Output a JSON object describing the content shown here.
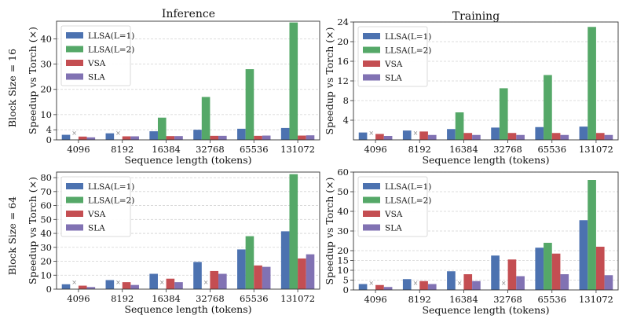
{
  "figure": {
    "col_titles": [
      "Inference",
      "Training"
    ],
    "row_labels": [
      "Block Size = 16",
      "Block Size = 64"
    ]
  },
  "colors": {
    "LLSA(L=1)": "#4c72b0",
    "LLSA(L=2)": "#55a868",
    "VSA": "#c44e52",
    "SLA": "#8172b3"
  },
  "missing_marker": "×",
  "chart_data": [
    {
      "id": "inference-bs16",
      "type": "bar",
      "title": "Inference",
      "row_label": "Block Size = 16",
      "xlabel": "Sequence length (tokens)",
      "ylabel": "Speedup vs Torch (×)",
      "categories": [
        "4096",
        "8192",
        "16384",
        "32768",
        "65536",
        "131072"
      ],
      "ylim": [
        0,
        47
      ],
      "yticks": [
        0,
        4,
        10,
        20,
        30,
        40
      ],
      "grid": true,
      "legend_position": "top-left",
      "series": [
        {
          "name": "LLSA(L=1)",
          "values": [
            2.0,
            2.6,
            3.4,
            4.0,
            4.4,
            4.7
          ]
        },
        {
          "name": "LLSA(L=2)",
          "values": [
            null,
            null,
            8.8,
            17.0,
            28.0,
            46.5
          ]
        },
        {
          "name": "VSA",
          "values": [
            1.3,
            1.4,
            1.5,
            1.6,
            1.6,
            1.7
          ]
        },
        {
          "name": "SLA",
          "values": [
            1.0,
            1.4,
            1.5,
            1.6,
            1.7,
            1.8
          ]
        }
      ]
    },
    {
      "id": "training-bs16",
      "type": "bar",
      "title": "Training",
      "row_label": "Block Size = 16",
      "xlabel": "Sequence length (tokens)",
      "ylabel": "Speedup vs Torch (×)",
      "categories": [
        "4096",
        "8192",
        "16384",
        "32768",
        "65536",
        "131072"
      ],
      "ylim": [
        0,
        24
      ],
      "yticks": [
        4,
        8,
        12,
        16,
        20,
        24
      ],
      "grid": true,
      "legend_position": "top-left",
      "series": [
        {
          "name": "LLSA(L=1)",
          "values": [
            1.5,
            1.9,
            2.2,
            2.5,
            2.6,
            2.7
          ]
        },
        {
          "name": "LLSA(L=2)",
          "values": [
            null,
            null,
            5.6,
            10.5,
            13.2,
            23.0
          ]
        },
        {
          "name": "VSA",
          "values": [
            1.2,
            1.7,
            1.4,
            1.4,
            1.4,
            1.4
          ]
        },
        {
          "name": "SLA",
          "values": [
            0.8,
            1.0,
            1.0,
            1.0,
            1.0,
            1.0
          ]
        }
      ]
    },
    {
      "id": "inference-bs64",
      "type": "bar",
      "title": "",
      "row_label": "Block Size = 64",
      "xlabel": "Sequence length (tokens)",
      "ylabel": "Speedup vs Torch (×)",
      "categories": [
        "4096",
        "8192",
        "16384",
        "32768",
        "65536",
        "131072"
      ],
      "ylim": [
        0,
        84
      ],
      "yticks": [
        0,
        10,
        20,
        30,
        40,
        50,
        60,
        70,
        80
      ],
      "grid": true,
      "legend_position": "top-left",
      "series": [
        {
          "name": "LLSA(L=1)",
          "values": [
            3.5,
            6.5,
            11.0,
            19.5,
            28.5,
            41.5
          ]
        },
        {
          "name": "LLSA(L=2)",
          "values": [
            null,
            null,
            null,
            null,
            38.0,
            82.5
          ]
        },
        {
          "name": "VSA",
          "values": [
            2.5,
            5.0,
            7.5,
            13.0,
            17.0,
            22.0
          ]
        },
        {
          "name": "SLA",
          "values": [
            1.5,
            3.0,
            5.0,
            11.0,
            16.0,
            25.0
          ]
        }
      ]
    },
    {
      "id": "training-bs64",
      "type": "bar",
      "title": "",
      "row_label": "Block Size = 64",
      "xlabel": "Sequence length (tokens)",
      "ylabel": "Speedup vs Torch (×)",
      "categories": [
        "4096",
        "8192",
        "16384",
        "32768",
        "65536",
        "131072"
      ],
      "ylim": [
        0,
        60
      ],
      "yticks": [
        0,
        5,
        10,
        15,
        20,
        30,
        40,
        50,
        60
      ],
      "grid": true,
      "legend_position": "top-left",
      "series": [
        {
          "name": "LLSA(L=1)",
          "values": [
            3.0,
            5.5,
            9.5,
            17.5,
            21.5,
            35.5
          ]
        },
        {
          "name": "LLSA(L=2)",
          "values": [
            null,
            null,
            null,
            null,
            24.0,
            56.0
          ]
        },
        {
          "name": "VSA",
          "values": [
            2.5,
            4.5,
            8.0,
            15.5,
            18.5,
            22.0
          ]
        },
        {
          "name": "SLA",
          "values": [
            1.5,
            3.0,
            4.5,
            7.0,
            8.0,
            7.5
          ]
        }
      ]
    }
  ]
}
